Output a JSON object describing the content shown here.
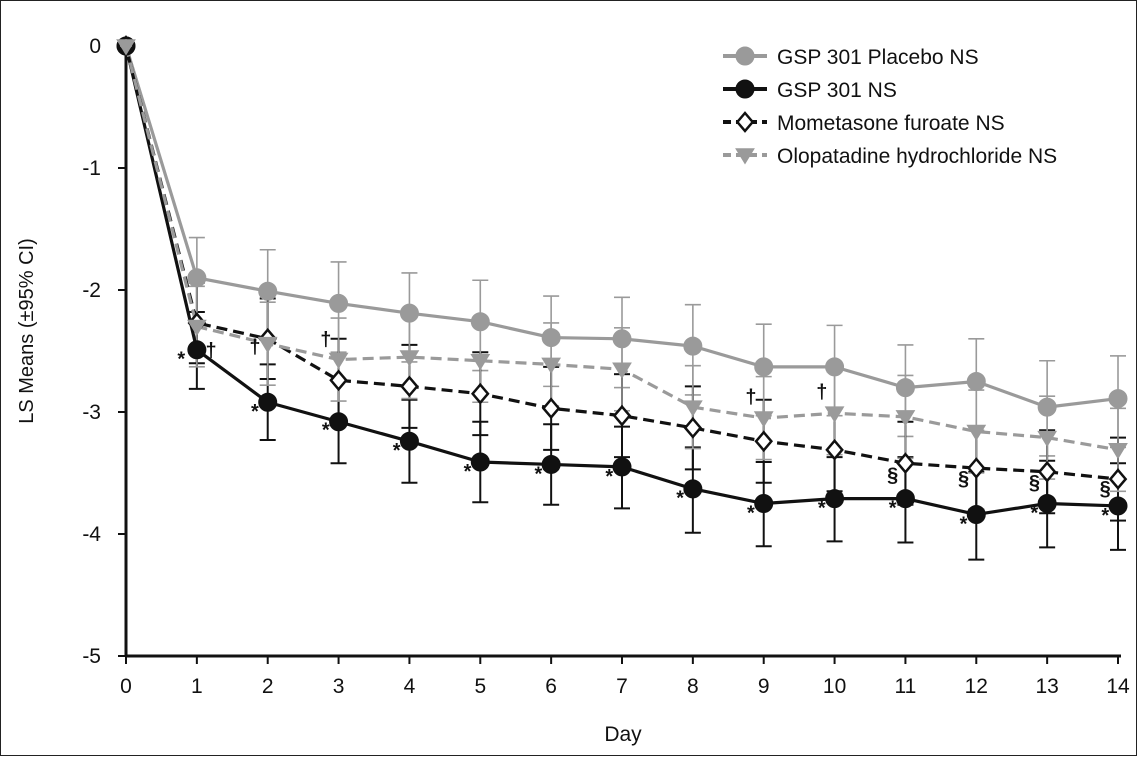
{
  "chart_data": {
    "type": "line",
    "xlabel": "Day",
    "ylabel": "LS Means (±95% CI)",
    "xlim": [
      0,
      14
    ],
    "ylim": [
      -5,
      0
    ],
    "x_ticks": [
      "0",
      "1",
      "2",
      "3",
      "4",
      "5",
      "6",
      "7",
      "8",
      "9",
      "10",
      "11",
      "12",
      "13",
      "14"
    ],
    "y_ticks": [
      "0",
      "-1",
      "-2",
      "-3",
      "-4",
      "-5"
    ],
    "grid": false,
    "legend_position": "top-right",
    "x": [
      0,
      1,
      2,
      3,
      4,
      5,
      6,
      7,
      8,
      9,
      10,
      11,
      12,
      13,
      14
    ],
    "series": [
      {
        "name": "GSP 301 Placebo NS",
        "color": "#9a9a9a",
        "line": "solid",
        "marker": "circle",
        "values": [
          0,
          -1.9,
          -2.01,
          -2.11,
          -2.19,
          -2.26,
          -2.39,
          -2.4,
          -2.46,
          -2.63,
          -2.63,
          -2.8,
          -2.75,
          -2.96,
          -2.89
        ],
        "ci_low": [
          0,
          -2.28,
          -2.41,
          -2.51,
          -2.59,
          -2.66,
          -2.79,
          -2.8,
          -2.86,
          -3.03,
          -3.03,
          -3.2,
          -3.15,
          -3.36,
          -3.29
        ],
        "ci_high": [
          0,
          -1.57,
          -1.67,
          -1.77,
          -1.86,
          -1.92,
          -2.05,
          -2.06,
          -2.12,
          -2.28,
          -2.29,
          -2.45,
          -2.4,
          -2.58,
          -2.54
        ]
      },
      {
        "name": "GSP 301 NS",
        "color": "#111111",
        "line": "solid",
        "marker": "filled-circle",
        "values": [
          0,
          -2.49,
          -2.92,
          -3.08,
          -3.24,
          -3.41,
          -3.43,
          -3.45,
          -3.63,
          -3.75,
          -3.71,
          -3.71,
          -3.84,
          -3.75,
          -3.77
        ],
        "ci_low": [
          0,
          -2.81,
          -3.23,
          -3.42,
          -3.58,
          -3.74,
          -3.76,
          -3.79,
          -3.99,
          -4.1,
          -4.06,
          -4.07,
          -4.21,
          -4.11,
          -4.13
        ],
        "ci_high": [
          0,
          -2.18,
          -2.61,
          -2.74,
          -2.9,
          -3.08,
          -3.1,
          -3.12,
          -3.29,
          -3.41,
          -3.37,
          -3.37,
          -3.49,
          -3.4,
          -3.42
        ]
      },
      {
        "name": "Mometasone furoate NS",
        "color": "#111111",
        "line": "dashed",
        "marker": "open-diamond",
        "values": [
          0,
          -2.27,
          -2.4,
          -2.74,
          -2.79,
          -2.85,
          -2.97,
          -3.03,
          -3.13,
          -3.24,
          -3.31,
          -3.42,
          -3.46,
          -3.49,
          -3.55
        ],
        "ci_low": [
          0,
          -2.6,
          -2.73,
          -3.08,
          -3.13,
          -3.19,
          -3.31,
          -3.37,
          -3.47,
          -3.58,
          -3.65,
          -3.76,
          -3.8,
          -3.83,
          -3.89
        ],
        "ci_high": [
          0,
          -1.94,
          -2.07,
          -2.4,
          -2.45,
          -2.51,
          -2.63,
          -2.69,
          -2.79,
          -2.9,
          -2.97,
          -3.08,
          -3.12,
          -3.15,
          -3.21
        ]
      },
      {
        "name": "Olopatadine hydrochloride NS",
        "color": "#9a9a9a",
        "line": "dashed",
        "marker": "filled-triangle-down",
        "values": [
          0,
          -2.3,
          -2.44,
          -2.57,
          -2.55,
          -2.58,
          -2.61,
          -2.65,
          -2.96,
          -3.05,
          -3.01,
          -3.04,
          -3.16,
          -3.21,
          -3.31
        ],
        "ci_low": [
          0,
          -2.63,
          -2.78,
          -2.91,
          -2.89,
          -2.92,
          -2.95,
          -2.99,
          -3.3,
          -3.39,
          -3.35,
          -3.38,
          -3.5,
          -3.55,
          -3.65
        ],
        "ci_high": [
          0,
          -1.97,
          -2.1,
          -2.23,
          -2.21,
          -2.24,
          -2.27,
          -2.31,
          -2.62,
          -2.71,
          -2.67,
          -2.7,
          -2.82,
          -2.87,
          -2.97
        ]
      }
    ],
    "annotations": [
      {
        "text": "*",
        "x": 0.78,
        "y": -2.62
      },
      {
        "text": "†",
        "x": 1.2,
        "y": -2.55
      },
      {
        "text": "*",
        "x": 1.82,
        "y": -3.05
      },
      {
        "text": "†",
        "x": 1.82,
        "y": -2.52
      },
      {
        "text": "*",
        "x": 2.82,
        "y": -3.2
      },
      {
        "text": "†",
        "x": 2.82,
        "y": -2.46
      },
      {
        "text": "*",
        "x": 3.82,
        "y": -3.37
      },
      {
        "text": "*",
        "x": 4.82,
        "y": -3.54
      },
      {
        "text": "*",
        "x": 5.82,
        "y": -3.56
      },
      {
        "text": "*",
        "x": 6.82,
        "y": -3.58
      },
      {
        "text": "*",
        "x": 7.82,
        "y": -3.76
      },
      {
        "text": "*",
        "x": 8.82,
        "y": -3.88
      },
      {
        "text": "†",
        "x": 8.82,
        "y": -2.93
      },
      {
        "text": "*",
        "x": 9.82,
        "y": -3.84
      },
      {
        "text": "†",
        "x": 9.82,
        "y": -2.89
      },
      {
        "text": "*",
        "x": 10.82,
        "y": -3.84
      },
      {
        "text": "§",
        "x": 10.82,
        "y": -3.57
      },
      {
        "text": "*",
        "x": 11.82,
        "y": -3.97
      },
      {
        "text": "§",
        "x": 11.82,
        "y": -3.6
      },
      {
        "text": "*",
        "x": 12.82,
        "y": -3.88
      },
      {
        "text": "§",
        "x": 12.82,
        "y": -3.63
      },
      {
        "text": "*",
        "x": 13.82,
        "y": -3.9
      },
      {
        "text": "§",
        "x": 13.82,
        "y": -3.68
      }
    ]
  }
}
